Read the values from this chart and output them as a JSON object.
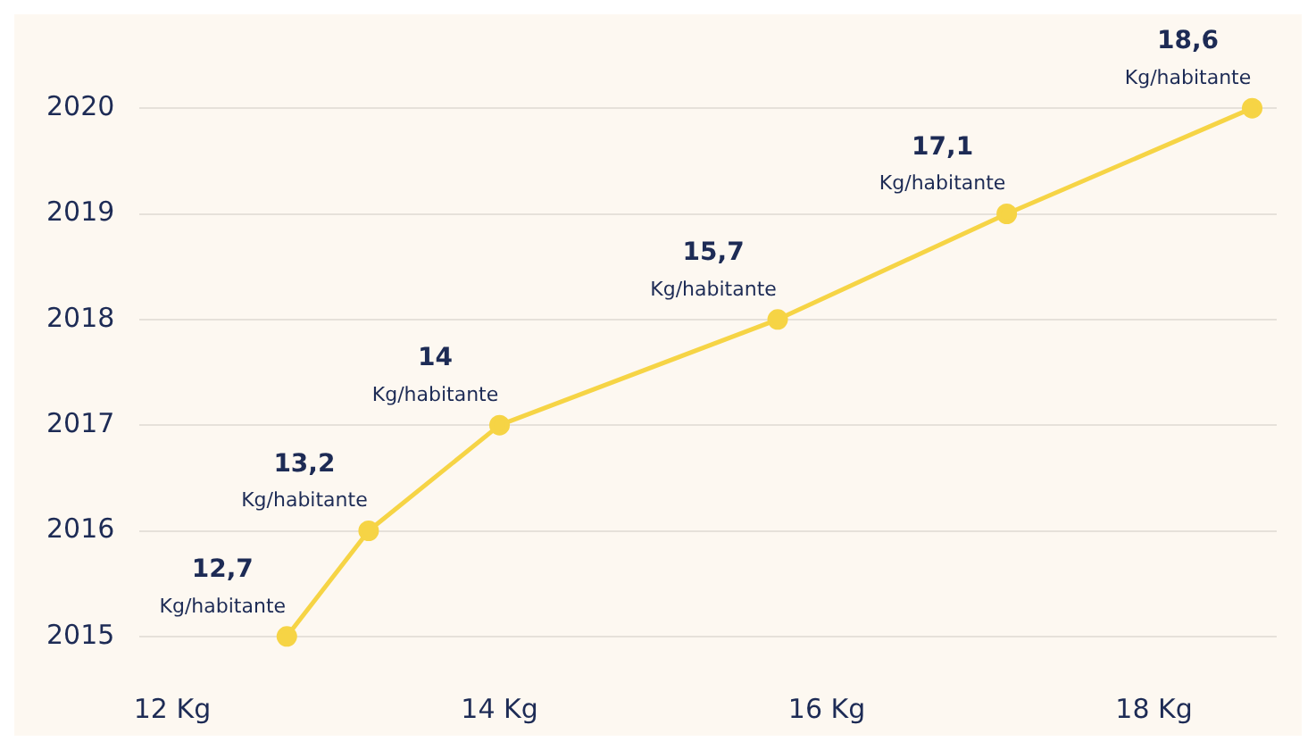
{
  "chart_data": {
    "type": "line",
    "orientation": "horizontal",
    "categories": [
      "2020",
      "2019",
      "2018",
      "2017",
      "2016",
      "2015"
    ],
    "series": [
      {
        "color": "#f6d445",
        "values": [
          18.6,
          17.1,
          15.7,
          14,
          13.2,
          12.7
        ],
        "value_labels": [
          "18,6",
          "17,1",
          "15,7",
          "14",
          "13,2",
          "12,7"
        ]
      }
    ],
    "annotations": [
      {
        "text": "Kg/habitante",
        "x": 18.6,
        "y": "2020"
      },
      {
        "text": "Kg/habitante",
        "x": 17.1,
        "y": "2019"
      },
      {
        "text": "Kg/habitante",
        "x": 15.7,
        "y": "2018"
      },
      {
        "text": "Kg/habitante",
        "x": 14,
        "y": "2017"
      },
      {
        "text": "Kg/habitante",
        "x": 13.2,
        "y": "2016"
      },
      {
        "text": "Kg/habitante",
        "x": 12.7,
        "y": "2015"
      }
    ],
    "xlim": [
      11.8,
      18.75
    ],
    "xticks": [
      {
        "value": 12,
        "label": "12 Kg"
      },
      {
        "value": 14,
        "label": "14 Kg"
      },
      {
        "value": 16,
        "label": "16 Kg"
      },
      {
        "value": 18,
        "label": "18 Kg"
      }
    ],
    "grid": "y",
    "legend": false,
    "marker": "circle",
    "line_style": "solid"
  }
}
